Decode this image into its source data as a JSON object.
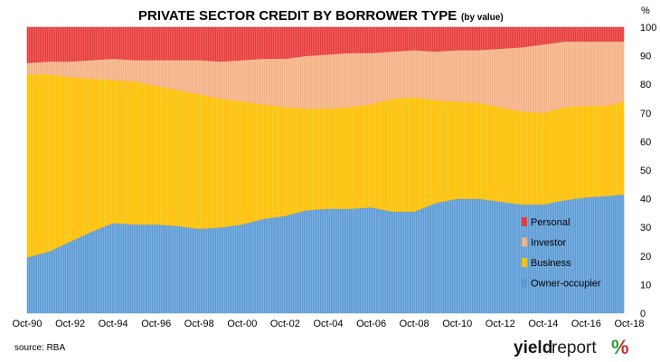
{
  "chart_data": {
    "type": "area",
    "stacked": true,
    "title": "PRIVATE SECTOR CREDIT BY BORROWER TYPE",
    "subtitle": "(by value)",
    "y_unit_label": "%",
    "ylim": [
      0,
      100
    ],
    "yticks": [
      "0",
      "10",
      "20",
      "30",
      "40",
      "50",
      "60",
      "70",
      "80",
      "90",
      "100"
    ],
    "x_tick_labels": [
      "Oct-90",
      "Oct-92",
      "Oct-94",
      "Oct-96",
      "Oct-98",
      "Oct-00",
      "Oct-02",
      "Oct-04",
      "Oct-06",
      "Oct-08",
      "Oct-10",
      "Oct-12",
      "Oct-14",
      "Oct-16",
      "Oct-18"
    ],
    "x": [
      1990.75,
      1991.75,
      1992.75,
      1993.75,
      1994.75,
      1995.75,
      1996.75,
      1997.75,
      1998.75,
      1999.75,
      2000.75,
      2001.75,
      2002.75,
      2003.75,
      2004.75,
      2005.75,
      2006.75,
      2007.75,
      2008.75,
      2009.75,
      2010.75,
      2011.75,
      2012.75,
      2013.75,
      2014.75,
      2015.75,
      2016.75,
      2017.75,
      2018.5
    ],
    "series": [
      {
        "name": "Owner-occupier",
        "color": "#5b9bd5",
        "values": [
          19.5,
          21.5,
          25,
          28.5,
          31.5,
          31,
          31,
          30.5,
          29.5,
          30,
          31,
          33,
          34,
          36,
          36.5,
          36.5,
          37,
          35.5,
          35.5,
          38.5,
          40,
          40,
          39,
          38,
          38,
          39.5,
          40.5,
          41,
          41.5
        ]
      },
      {
        "name": "Business",
        "color": "#ffc000",
        "values": [
          64,
          62,
          57.5,
          53.5,
          50,
          50,
          48.5,
          47.5,
          47,
          45,
          43,
          40,
          38,
          35.5,
          35,
          35.5,
          36,
          39.5,
          40,
          36,
          34,
          33.5,
          33,
          32.5,
          32,
          32.5,
          32,
          31.5,
          32.5
        ]
      },
      {
        "name": "Investor",
        "color": "#f4b183",
        "values": [
          4,
          4.5,
          5.5,
          6.5,
          7.5,
          7.5,
          9,
          10.5,
          12,
          13,
          14.5,
          16,
          17,
          18.5,
          19,
          19,
          18,
          16.5,
          16.5,
          17,
          18,
          18.5,
          20.5,
          22.5,
          24,
          23,
          22.5,
          22.5,
          21
        ]
      },
      {
        "name": "Personal",
        "color": "#e83a3a",
        "values": [
          12.5,
          12,
          12,
          11.5,
          11,
          11.5,
          11.5,
          11.5,
          11.5,
          12,
          11.5,
          11,
          11,
          10,
          9.5,
          9,
          9,
          8.5,
          8,
          8.5,
          8,
          8,
          7.5,
          7,
          6,
          5,
          5,
          5,
          5
        ]
      }
    ],
    "legend_order": [
      "Personal",
      "Investor",
      "Business",
      "Owner-occupier"
    ],
    "legend_position": "inside-right",
    "grid": false
  },
  "footer": {
    "source": "source: RBA",
    "logo_part1": "yield",
    "logo_part2": "report",
    "logo_pct": "%"
  },
  "colors": {
    "logo_pct_green": "#2e9a3e",
    "logo_pct_red": "#d42a2a"
  }
}
